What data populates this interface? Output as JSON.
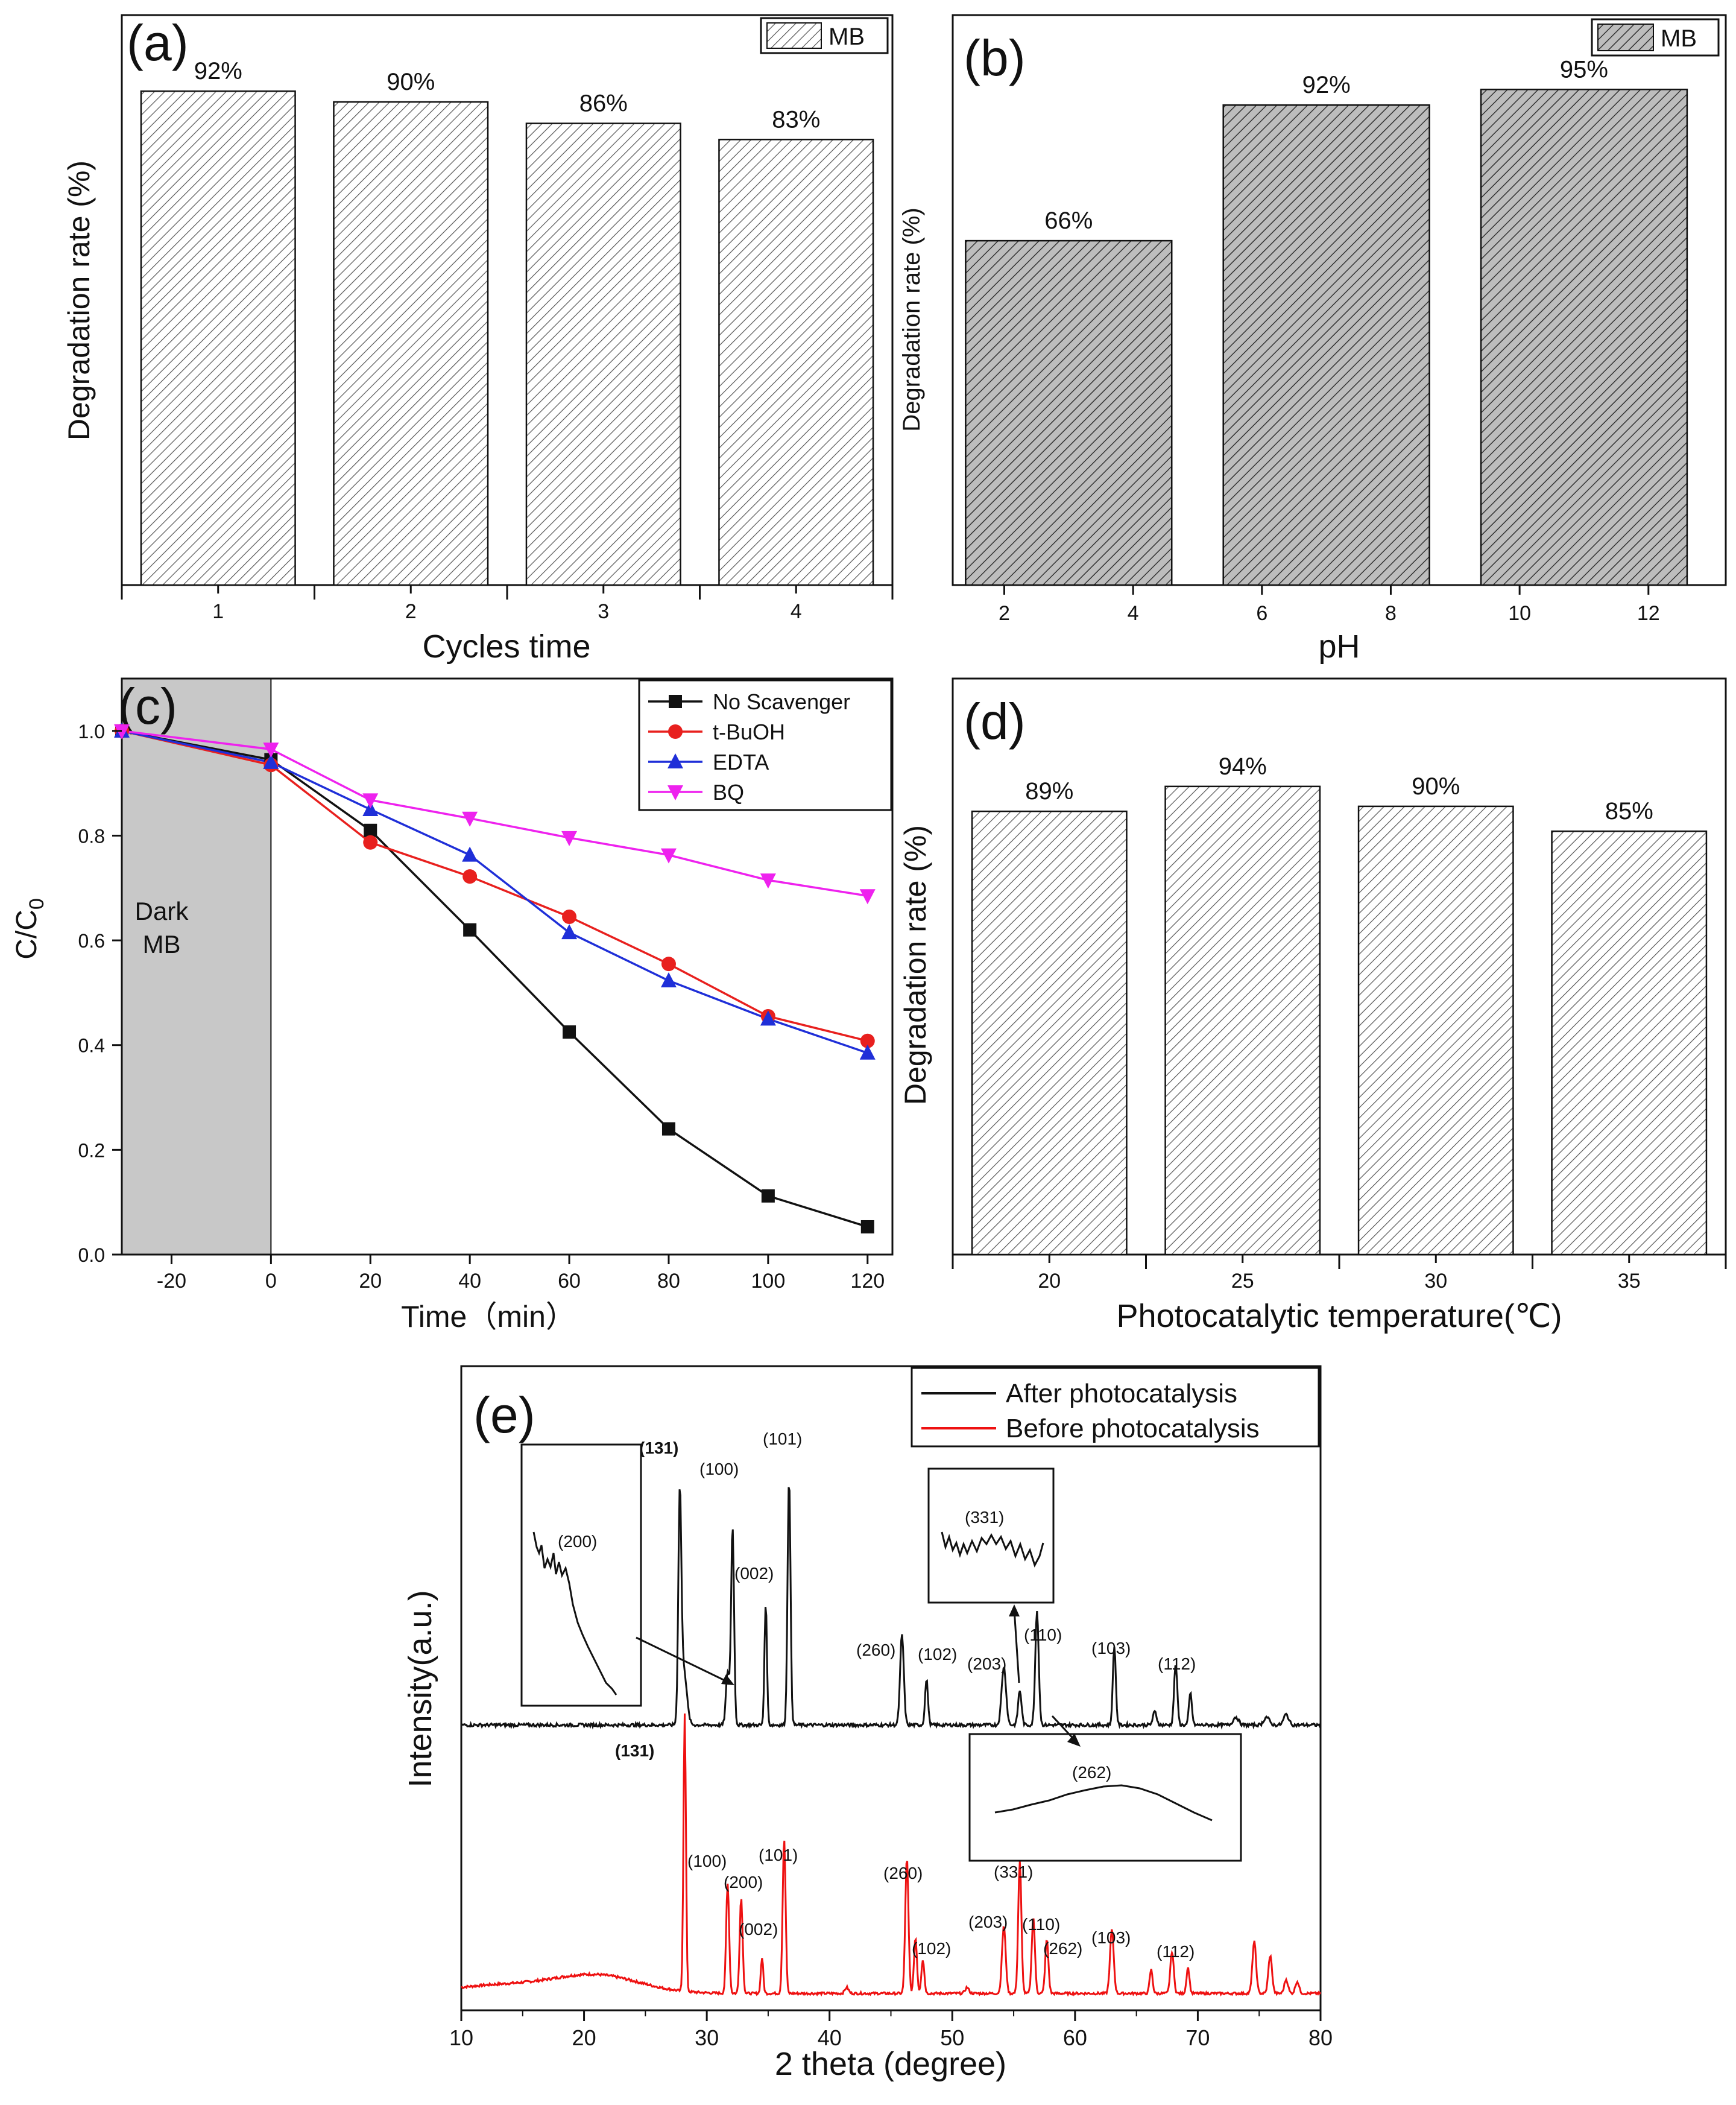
{
  "colors": {
    "axis": "#111111",
    "hatch_light_bg": "#ffffff",
    "hatch_dark_bg": "#b8b8b8",
    "dark_region": "#c8c8c8",
    "no_scavenger": "#111111",
    "t_buoh": "#e8201e",
    "edta": "#1f2fd8",
    "bq": "#ee22ee",
    "after": "#111111",
    "before": "#ee1111"
  },
  "chart_data": [
    {
      "panel": "(a)",
      "type": "bar",
      "categories": [
        "1",
        "2",
        "3",
        "4"
      ],
      "values": [
        92,
        90,
        86,
        83
      ],
      "value_labels": [
        "92%",
        "90%",
        "86%",
        "83%"
      ],
      "series": [
        {
          "name": "MB",
          "values": [
            92,
            90,
            86,
            83
          ]
        }
      ],
      "legend": [
        "MB"
      ],
      "xlabel": "Cycles time",
      "ylabel": "Degradation rate (%)",
      "ylim": [
        0,
        100
      ],
      "legend_position": "top-right"
    },
    {
      "panel": "(b)",
      "type": "bar",
      "x": [
        3,
        7,
        11
      ],
      "values": [
        66,
        92,
        95
      ],
      "value_labels": [
        "66%",
        "92%",
        "95%"
      ],
      "xticks": [
        "2",
        "4",
        "6",
        "8",
        "10",
        "12"
      ],
      "tick_values": [
        2,
        4,
        6,
        8,
        10,
        12
      ],
      "xlim": [
        1.2,
        13.2
      ],
      "bar_width": 3.2,
      "series": [
        {
          "name": "MB",
          "values": [
            66,
            92,
            95
          ]
        }
      ],
      "legend": [
        "MB"
      ],
      "xlabel": "pH",
      "ylabel": "Degradation rate (%)",
      "ylim": [
        0,
        100
      ],
      "legend_position": "top-right"
    },
    {
      "panel": "(c)",
      "type": "line",
      "xlabel": "Time（min）",
      "ylabel_main": "C/C",
      "ylabel_sub": "0",
      "xlim": [
        -30,
        125
      ],
      "ylim": [
        0,
        1.1
      ],
      "xticks": [
        "-20",
        "0",
        "20",
        "40",
        "60",
        "80",
        "100",
        "120"
      ],
      "xtick_values": [
        -20,
        0,
        20,
        40,
        60,
        80,
        100,
        120
      ],
      "yticks": [
        "0.0",
        "0.2",
        "0.4",
        "0.6",
        "0.8",
        "1.0"
      ],
      "ytick_values": [
        0,
        0.2,
        0.4,
        0.6,
        0.8,
        1.0
      ],
      "dark_region": [
        -30,
        0
      ],
      "dark_label": [
        "Dark",
        "MB"
      ],
      "x": [
        -30,
        0,
        20,
        40,
        60,
        80,
        100,
        120
      ],
      "series": [
        {
          "name": "No Scavenger",
          "marker": "square",
          "values": [
            1.0,
            0.945,
            0.81,
            0.62,
            0.425,
            0.24,
            0.112,
            0.053
          ]
        },
        {
          "name": "t-BuOH",
          "marker": "circle",
          "values": [
            1.0,
            0.935,
            0.787,
            0.722,
            0.645,
            0.555,
            0.455,
            0.408
          ]
        },
        {
          "name": "EDTA",
          "marker": "triangle-up",
          "values": [
            1.0,
            0.94,
            0.85,
            0.763,
            0.615,
            0.523,
            0.45,
            0.385
          ]
        },
        {
          "name": "BQ",
          "marker": "triangle-down",
          "values": [
            1.0,
            0.965,
            0.868,
            0.833,
            0.796,
            0.763,
            0.715,
            0.685
          ]
        }
      ],
      "legend_position": "top-right"
    },
    {
      "panel": "(d)",
      "type": "bar",
      "categories": [
        "20",
        "25",
        "30",
        "35"
      ],
      "values": [
        89,
        94,
        90,
        85
      ],
      "value_labels": [
        "89%",
        "94%",
        "90%",
        "85%"
      ],
      "xlabel": "Photocatalytic temperature(℃)",
      "ylabel": "Degradation rate (%)",
      "ylim": [
        0,
        109
      ]
    },
    {
      "panel": "(e)",
      "type": "line",
      "xlabel": "2 theta (degree)",
      "ylabel": "Intensity(a.u.)",
      "xlim": [
        10,
        80
      ],
      "xticks": [
        "10",
        "20",
        "30",
        "40",
        "50",
        "60",
        "70",
        "80"
      ],
      "xtick_values": [
        10,
        20,
        30,
        40,
        50,
        60,
        70,
        80
      ],
      "legend_position": "top-right",
      "series": [
        {
          "name": "After photocatalysis",
          "peaks": [
            [
              27.8,
              0.8,
              0.12
            ],
            [
              28.1,
              0.22,
              0.25
            ],
            [
              31.7,
              0.2,
              0.14
            ],
            [
              32.1,
              0.75,
              0.12
            ],
            [
              34.8,
              0.46,
              0.1
            ],
            [
              36.7,
              0.93,
              0.12
            ],
            [
              45.9,
              0.34,
              0.15
            ],
            [
              47.9,
              0.17,
              0.12
            ],
            [
              54.2,
              0.22,
              0.18
            ],
            [
              55.5,
              0.13,
              0.14
            ],
            [
              56.9,
              0.43,
              0.14
            ],
            [
              63.2,
              0.3,
              0.12
            ],
            [
              66.5,
              0.05,
              0.15
            ],
            [
              68.2,
              0.23,
              0.13
            ],
            [
              69.4,
              0.12,
              0.12
            ],
            [
              73.1,
              0.03,
              0.22
            ],
            [
              75.6,
              0.03,
              0.22
            ],
            [
              77.2,
              0.04,
              0.2
            ]
          ]
        },
        {
          "name": "Before photocatalysis",
          "peaks": [
            [
              28.2,
              1.4,
              0.1
            ],
            [
              31.7,
              0.55,
              0.12
            ],
            [
              32.8,
              0.48,
              0.12
            ],
            [
              34.5,
              0.18,
              0.1
            ],
            [
              36.3,
              0.78,
              0.12
            ],
            [
              41.4,
              0.03,
              0.15
            ],
            [
              46.3,
              0.68,
              0.13
            ],
            [
              47.0,
              0.28,
              0.12
            ],
            [
              47.6,
              0.17,
              0.12
            ],
            [
              51.2,
              0.03,
              0.15
            ],
            [
              54.2,
              0.34,
              0.15
            ],
            [
              55.5,
              0.66,
              0.13
            ],
            [
              56.6,
              0.38,
              0.13
            ],
            [
              57.7,
              0.27,
              0.13
            ],
            [
              63.0,
              0.32,
              0.15
            ],
            [
              66.2,
              0.12,
              0.12
            ],
            [
              67.9,
              0.21,
              0.14
            ],
            [
              69.2,
              0.13,
              0.12
            ],
            [
              74.6,
              0.26,
              0.15
            ],
            [
              75.9,
              0.19,
              0.15
            ],
            [
              77.2,
              0.07,
              0.15
            ],
            [
              78.1,
              0.06,
              0.15
            ]
          ]
        }
      ],
      "after_labels": [
        "(131)",
        "(100)",
        "(101)",
        "(002)",
        "(260)",
        "(102)",
        "(203)",
        "(110)",
        "(103)",
        "(112)"
      ],
      "before_labels": [
        "(131)",
        "(100)",
        "(200)",
        "(101)",
        "(002)",
        "(260)",
        "(102)",
        "(203)",
        "(331)",
        "(110)",
        "(262)",
        "(103)",
        "(112)"
      ],
      "insets": [
        {
          "label": "(200)",
          "marks_peak": "(200)"
        },
        {
          "label": "(331)",
          "marks_peak": "(331)"
        },
        {
          "label": "(262)",
          "marks_peak": "(262)"
        }
      ]
    }
  ]
}
